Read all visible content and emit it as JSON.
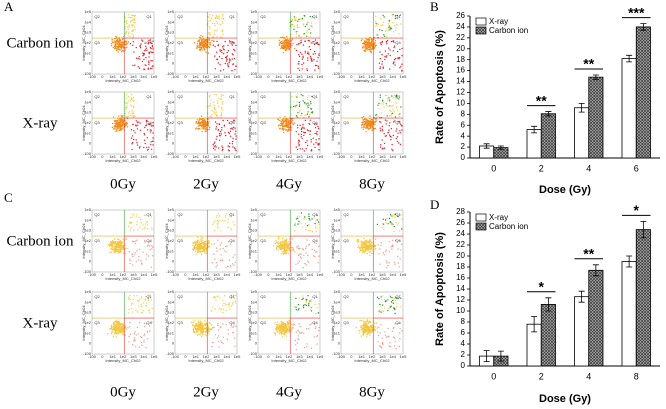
{
  "panels": {
    "A": {
      "letter": "A",
      "row_labels": [
        "Carbon ion",
        "X-ray"
      ],
      "column_labels": [
        "0Gy",
        "2Gy",
        "4Gy",
        "8Gy"
      ]
    },
    "C": {
      "letter": "C",
      "row_labels": [
        "Carbon ion",
        "X-ray"
      ],
      "column_labels": [
        "0Gy",
        "2Gy",
        "4Gy",
        "8Gy"
      ]
    }
  },
  "flow_plot": {
    "x_axis_label": "Intensity_MC_Ch02",
    "y_axis_label": "Intensity_MC_Ch04",
    "quadrant_labels": [
      "Q2",
      "Q1",
      "Q3",
      "Q4"
    ],
    "x_tick_labels": [
      "-100",
      "0",
      "1e1",
      "1e2",
      "1e3",
      "1e4",
      "1e5"
    ],
    "y_tick_labels": [
      "1e5",
      "1e4",
      "1e3",
      "1e2",
      "1e1",
      "0",
      "-100"
    ]
  },
  "chart_data": [
    {
      "type": "bar",
      "letter": "B",
      "x_label": "Dose (Gy)",
      "y_label": "Rate of Apoptosis (%)",
      "categories": [
        "0",
        "2",
        "4",
        "6"
      ],
      "series": [
        {
          "name": "X-ray",
          "color": "#ffffff",
          "values": [
            2.2,
            5.2,
            9.2,
            18.2
          ],
          "errors": [
            0.4,
            0.6,
            0.8,
            0.6
          ]
        },
        {
          "name": "Carbon ion",
          "color": "#444444",
          "pattern": "crosshatch",
          "values": [
            1.9,
            8.1,
            14.8,
            24.0
          ],
          "errors": [
            0.3,
            0.4,
            0.4,
            0.6
          ]
        }
      ],
      "significance": [
        null,
        "**",
        "**",
        "***"
      ],
      "ylim": [
        0,
        26
      ],
      "yticks": [
        0,
        2,
        4,
        6,
        8,
        10,
        12,
        14,
        16,
        18,
        20,
        22,
        24,
        26
      ],
      "legend": "upper left"
    },
    {
      "type": "bar",
      "letter": "D",
      "x_label": "Dose (Gy)",
      "y_label": "Rate of Apoptosis (%)",
      "categories": [
        "0",
        "2",
        "4",
        "8"
      ],
      "series": [
        {
          "name": "X-ray",
          "color": "#ffffff",
          "values": [
            1.8,
            7.6,
            12.6,
            19.0
          ],
          "errors": [
            1.0,
            1.4,
            1.0,
            1.0
          ]
        },
        {
          "name": "Carbon ion",
          "color": "#444444",
          "pattern": "crosshatch",
          "values": [
            1.8,
            11.2,
            17.4,
            24.8
          ],
          "errors": [
            0.9,
            1.2,
            1.0,
            1.5
          ]
        }
      ],
      "significance": [
        null,
        "*",
        "**",
        "*"
      ],
      "ylim": [
        0,
        28
      ],
      "yticks": [
        0,
        2,
        4,
        6,
        8,
        10,
        12,
        14,
        16,
        18,
        20,
        22,
        24,
        26,
        28
      ],
      "legend": "upper left"
    }
  ]
}
